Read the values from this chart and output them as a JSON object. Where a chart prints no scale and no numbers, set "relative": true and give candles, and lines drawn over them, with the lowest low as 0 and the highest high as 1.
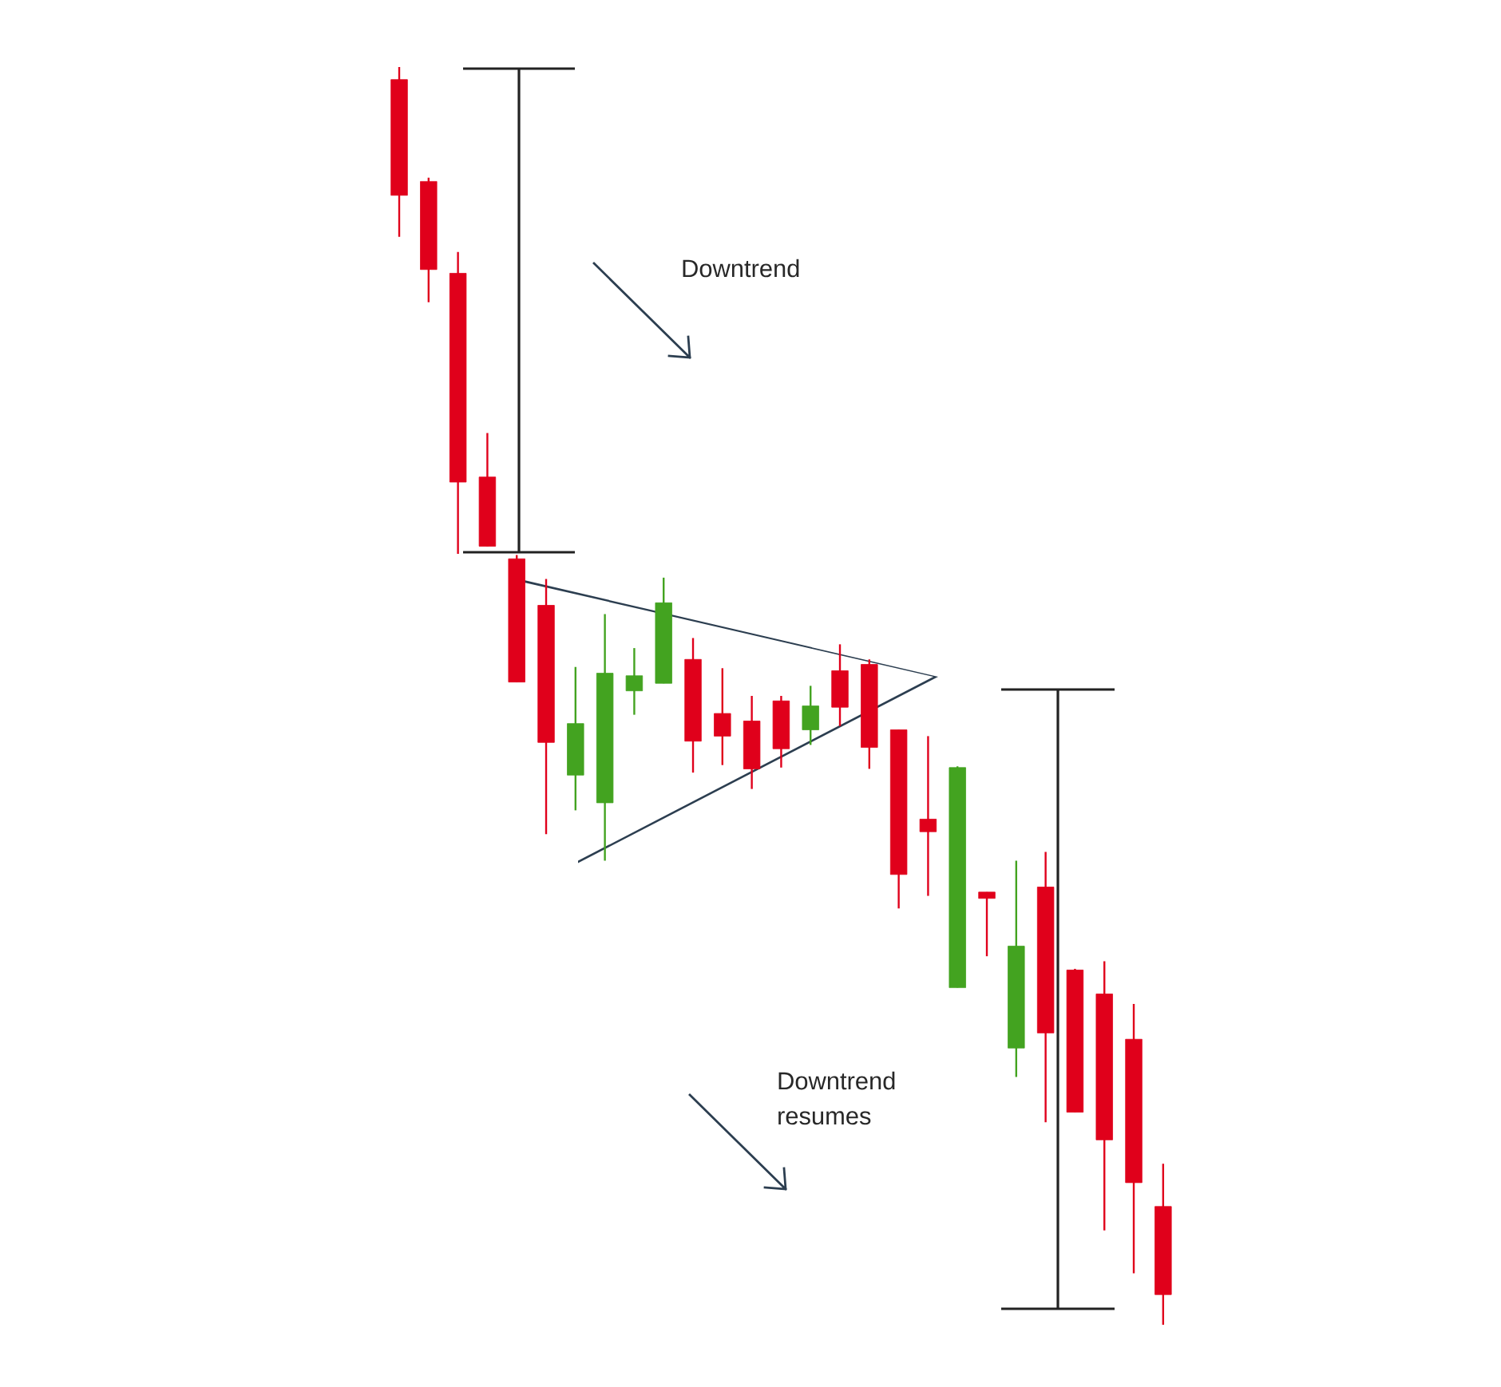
{
  "chart_data": {
    "type": "candlestick",
    "relative": true,
    "categories": [
      null,
      null,
      null,
      null,
      null,
      null,
      null,
      null,
      null,
      null,
      null,
      null,
      null,
      null,
      null,
      null,
      null,
      null,
      null,
      null,
      null,
      null,
      null,
      null,
      null,
      null,
      null
    ],
    "ohlc": [
      [
        0.99,
        1.0,
        0.865,
        0.898
      ],
      [
        0.909,
        0.912,
        0.813,
        0.839
      ],
      [
        0.836,
        0.853,
        0.613,
        0.67
      ],
      [
        0.674,
        0.709,
        0.619,
        0.619
      ],
      [
        0.609,
        0.612,
        0.511,
        0.511
      ],
      [
        0.572,
        0.593,
        0.39,
        0.463
      ],
      [
        0.437,
        0.523,
        0.409,
        0.478
      ],
      [
        0.415,
        0.565,
        0.369,
        0.518
      ],
      [
        0.504,
        0.538,
        0.485,
        0.516
      ],
      [
        0.51,
        0.594,
        0.51,
        0.574
      ],
      [
        0.529,
        0.546,
        0.439,
        0.464
      ],
      [
        0.486,
        0.522,
        0.445,
        0.468
      ],
      [
        0.48,
        0.5,
        0.426,
        0.442
      ],
      [
        0.496,
        0.5,
        0.443,
        0.458
      ],
      [
        0.473,
        0.508,
        0.461,
        0.492
      ],
      [
        0.52,
        0.541,
        0.476,
        0.491
      ],
      [
        0.525,
        0.529,
        0.442,
        0.459
      ],
      [
        0.473,
        0.473,
        0.331,
        0.358
      ],
      [
        0.402,
        0.468,
        0.341,
        0.392
      ],
      [
        0.268,
        0.444,
        0.268,
        0.443
      ],
      [
        0.344,
        0.344,
        0.293,
        0.339
      ],
      [
        0.22,
        0.369,
        0.197,
        0.301
      ],
      [
        0.348,
        0.376,
        0.161,
        0.232
      ],
      [
        0.282,
        0.283,
        0.169,
        0.169
      ],
      [
        0.263,
        0.289,
        0.075,
        0.147
      ],
      [
        0.227,
        0.255,
        0.041,
        0.113
      ],
      [
        0.094,
        0.128,
        0.0,
        0.024
      ]
    ],
    "colors": [
      "#e0001b",
      "#e0001b",
      "#e0001b",
      "#e0001b",
      "#e0001b",
      "#e0001b",
      "#43a320",
      "#43a320",
      "#43a320",
      "#43a320",
      "#e0001b",
      "#e0001b",
      "#e0001b",
      "#e0001b",
      "#43a320",
      "#e0001b",
      "#e0001b",
      "#e0001b",
      "#e0001b",
      "#43a320",
      "#e0001b",
      "#43a320",
      "#e0001b",
      "#e0001b",
      "#e0001b",
      "#e0001b",
      "#e0001b"
    ],
    "annotations": [
      "Downtrend",
      "Downtrend resumes"
    ]
  }
}
